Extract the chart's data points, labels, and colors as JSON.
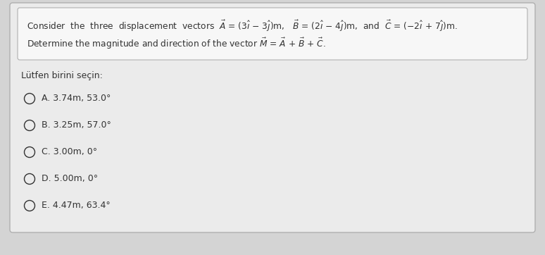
{
  "bg_color": "#d4d4d4",
  "box_color": "#ebebeb",
  "box_edge_color": "#b0b0b0",
  "text_color": "#333333",
  "prompt": "Lütfen birini seçin:",
  "options": [
    "A. 3.74m, 53.0°",
    "B. 3.25m, 57.0°",
    "C. 3.00m, 0°",
    "D. 5.00m, 0°",
    "E. 4.47m, 63.4°"
  ],
  "figsize": [
    7.74,
    3.62
  ],
  "dpi": 100
}
